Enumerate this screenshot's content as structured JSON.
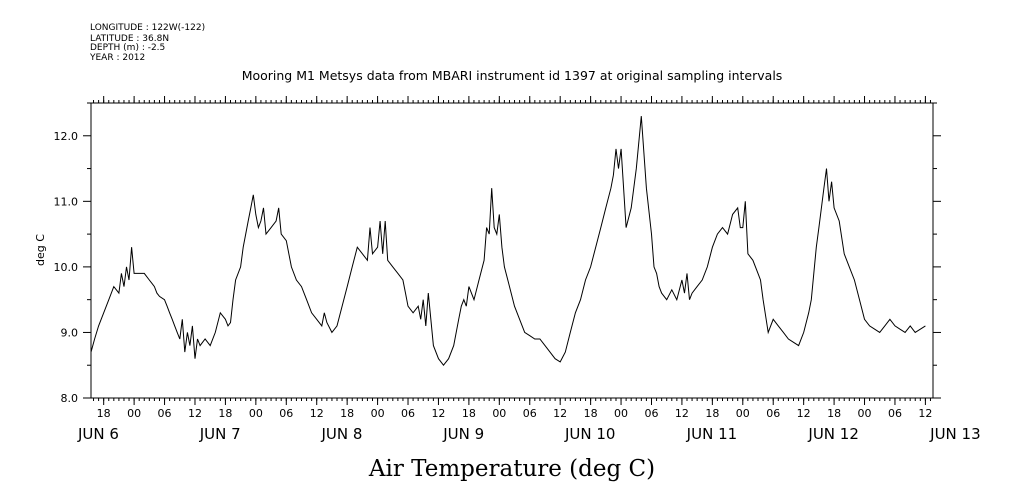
{
  "header": {
    "longitude": "LONGITUDE : 122W(-122)",
    "latitude": "LATITUDE : 36.8N",
    "depth": "DEPTH (m) : -2.5",
    "year": "YEAR : 2012"
  },
  "chart_data": {
    "type": "line",
    "title": "Mooring M1 Metsys data from MBARI instrument id 1397 at original sampling intervals",
    "ylabel": "deg C",
    "xlabel": "Air Temperature (deg C)",
    "ylim": [
      8.0,
      12.5
    ],
    "xlim_hours": [
      -8.5,
      157.5
    ],
    "y_ticks": [
      "8.0",
      "9.0",
      "10.0",
      "11.0",
      "12.0"
    ],
    "x_hour_ticks": [
      "18",
      "00",
      "06",
      "12",
      "18",
      "00",
      "06",
      "12",
      "18",
      "00",
      "06",
      "12",
      "18",
      "00",
      "06",
      "12",
      "18",
      "00",
      "06",
      "12",
      "18",
      "00",
      "06",
      "12",
      "18",
      "00",
      "06",
      "12"
    ],
    "x_date_labels": [
      "JUN  6",
      "JUN  7",
      "JUN  8",
      "JUN  9",
      "JUN 10",
      "JUN 11",
      "JUN 12",
      "JUN 13"
    ],
    "grid": false,
    "series": [
      {
        "x_hours": [
          -8.5,
          -7.8,
          -7,
          -6,
          -5,
          -4,
          -3,
          -2.5,
          -2,
          -1.5,
          -1,
          -0.5,
          0,
          1,
          2,
          3,
          3.5,
          4,
          4.5,
          5,
          6,
          6.5,
          7,
          7.5,
          8,
          8.5,
          9,
          9.5,
          10,
          10.5,
          11,
          11.5,
          12,
          12.5,
          13,
          14,
          15,
          16,
          17,
          18,
          18.5,
          19,
          19.5,
          20,
          21,
          21.5,
          22,
          22.5,
          23,
          23.5,
          24,
          24.5,
          25,
          25.5,
          26,
          27,
          28,
          28.5,
          29,
          30,
          31,
          32,
          33,
          34,
          35,
          36,
          37,
          37.5,
          38,
          39,
          40,
          41,
          42,
          43,
          44,
          45,
          46,
          46.5,
          47,
          48,
          48.5,
          49,
          49.5,
          50,
          51,
          52,
          53,
          53.5,
          54,
          55,
          56,
          56.5,
          57,
          57.5,
          58,
          59,
          60,
          61,
          62,
          63,
          64,
          64.5,
          65,
          65.5,
          66,
          67,
          68,
          69,
          69.5,
          70,
          70.5,
          71,
          71.5,
          72,
          72.5,
          73,
          74,
          75,
          76,
          77,
          78,
          79,
          80,
          81,
          82,
          83,
          84,
          85,
          86,
          87,
          88,
          89,
          90,
          91,
          92,
          93,
          94,
          94.5,
          95,
          95.5,
          96,
          96.5,
          97,
          98,
          99,
          100,
          101,
          102,
          102.5,
          103,
          103.5,
          104,
          105,
          106,
          107,
          108,
          108.5,
          109,
          109.5,
          110,
          111,
          112,
          113,
          114,
          115,
          116,
          117,
          118,
          119,
          119.5,
          120,
          120.5,
          121,
          122,
          123,
          123.5,
          124,
          125,
          126,
          127,
          128,
          129,
          130,
          131,
          132,
          133,
          133.5,
          134,
          134.5,
          135,
          135.5,
          136,
          136.5,
          137,
          137.5,
          138,
          139,
          140,
          141,
          142,
          143,
          144,
          145,
          146,
          147,
          148,
          149,
          150,
          151,
          152,
          153,
          154,
          155,
          156
        ],
        "values": [
          8.7,
          8.9,
          9.1,
          9.3,
          9.5,
          9.7,
          9.6,
          9.9,
          9.7,
          10.0,
          9.8,
          10.3,
          9.9,
          9.9,
          9.9,
          9.8,
          9.75,
          9.7,
          9.6,
          9.55,
          9.5,
          9.4,
          9.3,
          9.2,
          9.1,
          9.0,
          8.9,
          9.2,
          8.7,
          9.0,
          8.8,
          9.1,
          8.6,
          8.9,
          8.8,
          8.9,
          8.8,
          9.0,
          9.3,
          9.2,
          9.1,
          9.15,
          9.5,
          9.8,
          10.0,
          10.3,
          10.5,
          10.7,
          10.9,
          11.1,
          10.8,
          10.6,
          10.7,
          10.9,
          10.5,
          10.6,
          10.7,
          10.9,
          10.5,
          10.4,
          10.0,
          9.8,
          9.7,
          9.5,
          9.3,
          9.2,
          9.1,
          9.3,
          9.15,
          9.0,
          9.1,
          9.4,
          9.7,
          10.0,
          10.3,
          10.2,
          10.1,
          10.6,
          10.2,
          10.3,
          10.7,
          10.2,
          10.7,
          10.1,
          10.0,
          9.9,
          9.8,
          9.6,
          9.4,
          9.3,
          9.4,
          9.2,
          9.5,
          9.1,
          9.6,
          8.8,
          8.6,
          8.5,
          8.6,
          8.8,
          9.2,
          9.4,
          9.5,
          9.4,
          9.7,
          9.5,
          9.8,
          10.1,
          10.6,
          10.5,
          11.2,
          10.6,
          10.5,
          10.8,
          10.3,
          10.0,
          9.7,
          9.4,
          9.2,
          9.0,
          8.95,
          8.9,
          8.9,
          8.8,
          8.7,
          8.6,
          8.55,
          8.7,
          9.0,
          9.3,
          9.5,
          9.8,
          10.0,
          10.3,
          10.6,
          10.9,
          11.2,
          11.4,
          11.8,
          11.5,
          11.8,
          11.2,
          10.6,
          10.9,
          11.5,
          12.3,
          11.2,
          10.5,
          10.0,
          9.9,
          9.7,
          9.6,
          9.5,
          9.65,
          9.5,
          9.8,
          9.6,
          9.9,
          9.5,
          9.6,
          9.7,
          9.8,
          10.0,
          10.3,
          10.5,
          10.6,
          10.5,
          10.8,
          10.9,
          10.6,
          10.6,
          11.0,
          10.2,
          10.1,
          9.9,
          9.8,
          9.5,
          9.0,
          9.2,
          9.1,
          9.0,
          8.9,
          8.85,
          8.8,
          9.0,
          9.3,
          9.5,
          9.9,
          10.3,
          10.6,
          10.9,
          11.2,
          11.5,
          11.0,
          11.3,
          10.9,
          10.7,
          10.2,
          10.0,
          9.8,
          9.5,
          9.2,
          9.1,
          9.05,
          9.0,
          9.1,
          9.2,
          9.1,
          9.05,
          9.0,
          9.1,
          9.0,
          9.05,
          9.1
        ]
      }
    ]
  }
}
